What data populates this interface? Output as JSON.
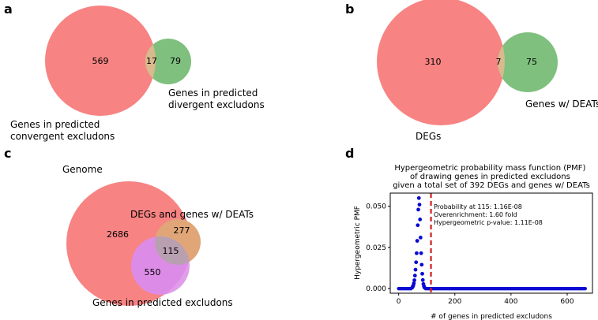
{
  "panels": {
    "a": {
      "letter": "a",
      "left_count": "569",
      "overlap_count": "17",
      "right_count": "79",
      "left_label": [
        "Genes in predicted",
        "convergent excludons"
      ],
      "right_label": [
        "Genes in predicted",
        "divergent excludons"
      ]
    },
    "b": {
      "letter": "b",
      "left_count": "310",
      "overlap_count": "7",
      "right_count": "75",
      "left_label": "DEGs",
      "right_label": "Genes w/ DEATs"
    },
    "c": {
      "letter": "c",
      "genome_label": "Genome",
      "degs_label": "DEGs and genes w/ DEATs",
      "excludons_label": "Genes in predicted excludons",
      "genome_only": "2686",
      "degs_only": "277",
      "overlap": "115",
      "excludons_only": "550"
    },
    "d": {
      "letter": "d"
    }
  },
  "colors": {
    "red": "#f78383",
    "green": "#7fc07f",
    "overlap_tan": "#d9b98d",
    "purple": "#dc8ce6",
    "mix_tan": "#e0a678",
    "gray": "#b9a0b0",
    "dots": "#0a0ad2",
    "vline": "#d21e1e"
  },
  "chart_data": {
    "type": "scatter",
    "title": [
      "Hypergeometric probability mass function (PMF)",
      "of drawing genes in predicted excludons",
      "given a total set of 392 DEGs and genes w/ DEATs"
    ],
    "xlabel": "# of genes in predicted excludons",
    "ylabel": "Hypergeometric PMF",
    "xlim": [
      -30,
      690
    ],
    "ylim": [
      -0.0028,
      0.058
    ],
    "xticks": [
      0,
      200,
      400,
      600
    ],
    "yticks": [
      0.0,
      0.025,
      0.05
    ],
    "ytick_labels": [
      "0.000",
      "0.025",
      "0.050"
    ],
    "x_range": [
      0,
      665
    ],
    "dist": {
      "mean": 72,
      "sd": 7.3,
      "peak": 0.055
    },
    "dots": [
      {
        "x": 48,
        "y": 0.0006
      },
      {
        "x": 50,
        "y": 0.0011
      },
      {
        "x": 52,
        "y": 0.0019
      },
      {
        "x": 54,
        "y": 0.0032
      },
      {
        "x": 56,
        "y": 0.0051
      },
      {
        "x": 58,
        "y": 0.0079
      },
      {
        "x": 60,
        "y": 0.0115
      },
      {
        "x": 62,
        "y": 0.016
      },
      {
        "x": 64,
        "y": 0.0215
      },
      {
        "x": 66,
        "y": 0.029
      },
      {
        "x": 68,
        "y": 0.0385
      },
      {
        "x": 70,
        "y": 0.048
      },
      {
        "x": 72,
        "y": 0.055
      },
      {
        "x": 74,
        "y": 0.051
      },
      {
        "x": 76,
        "y": 0.042
      },
      {
        "x": 78,
        "y": 0.031
      },
      {
        "x": 80,
        "y": 0.0215
      },
      {
        "x": 82,
        "y": 0.0145
      },
      {
        "x": 84,
        "y": 0.009
      },
      {
        "x": 86,
        "y": 0.0052
      },
      {
        "x": 88,
        "y": 0.0028
      },
      {
        "x": 90,
        "y": 0.0014
      },
      {
        "x": 92,
        "y": 0.0006
      }
    ],
    "vline_x": 115,
    "annotations": [
      "Probability at 115: 1.16E-08",
      "Overenrichment: 1.60 fold",
      "Hypergeometric p-value: 1.11E-08"
    ]
  }
}
